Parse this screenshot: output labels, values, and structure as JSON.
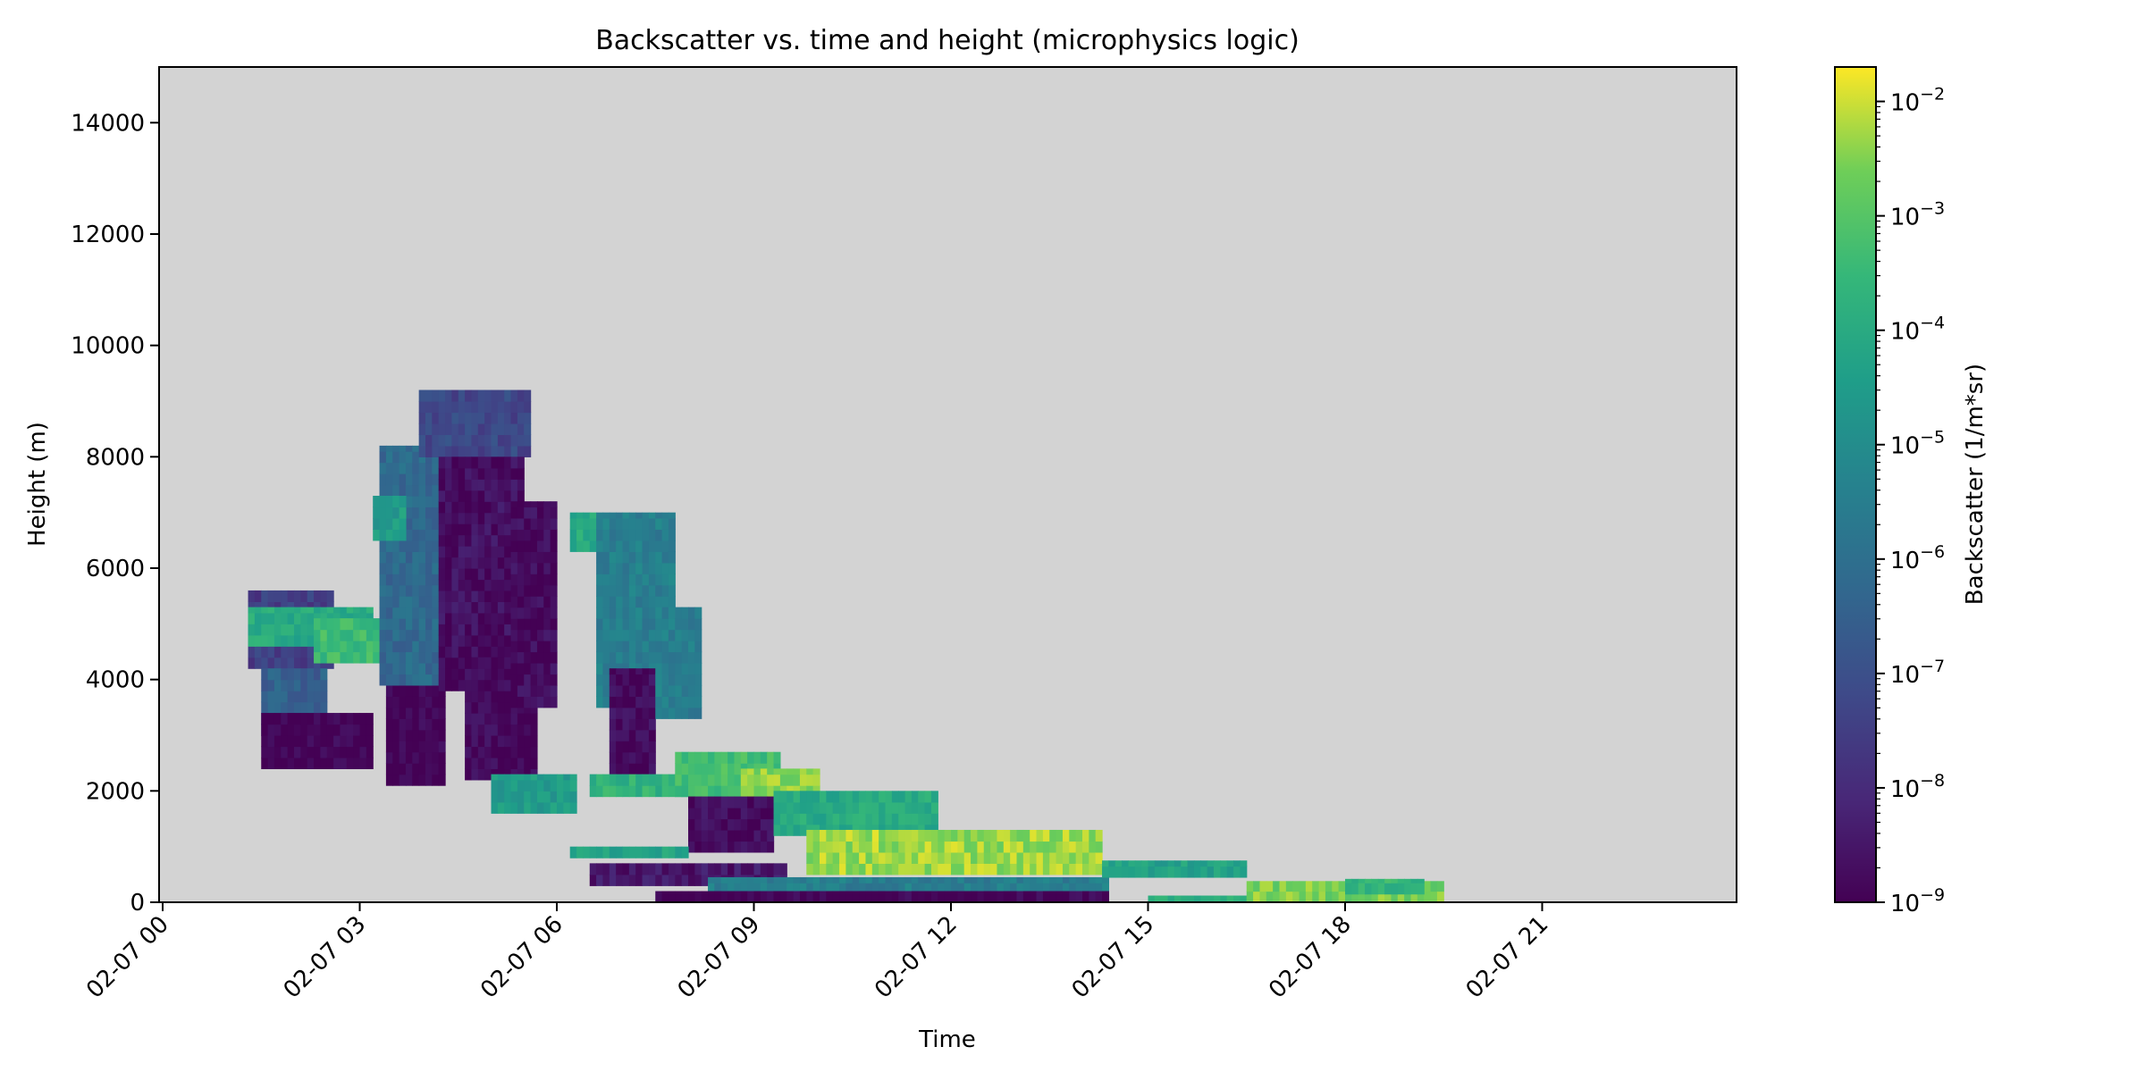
{
  "chart_data": {
    "type": "heatmap",
    "title": "Backscatter vs. time and height (microphysics logic)",
    "xlabel": "Time",
    "ylabel": "Height (m)",
    "x_ticks": [
      "02-07 00",
      "02-07 03",
      "02-07 06",
      "02-07 09",
      "02-07 12",
      "02-07 15",
      "02-07 18",
      "02-07 21"
    ],
    "y_ticks": [
      0,
      2000,
      4000,
      6000,
      8000,
      10000,
      12000,
      14000
    ],
    "xlim_hours": [
      0,
      24
    ],
    "ylim": [
      0,
      15000
    ],
    "grid": false,
    "background_color": "#d3d3d3",
    "colorbar": {
      "label": "Backscatter (1/m*sr)",
      "scale": "log",
      "vmin": 1e-09,
      "vmax": 0.02,
      "tick_exponents": [
        -9,
        -8,
        -7,
        -6,
        -5,
        -4,
        -3,
        -2
      ],
      "colormap": "viridis"
    },
    "regions": [
      {
        "hours": [
          1.3,
          2.6
        ],
        "height_m": [
          4200,
          5600
        ],
        "log10_backscatter": -7.5
      },
      {
        "hours": [
          1.3,
          3.2
        ],
        "height_m": [
          4600,
          5300
        ],
        "log10_backscatter": -4.0
      },
      {
        "hours": [
          2.3,
          3.8
        ],
        "height_m": [
          4300,
          5100
        ],
        "log10_backscatter": -3.4
      },
      {
        "hours": [
          1.5,
          2.5
        ],
        "height_m": [
          3000,
          4200
        ],
        "log10_backscatter": -6.5
      },
      {
        "hours": [
          1.5,
          3.2
        ],
        "height_m": [
          2400,
          3400
        ],
        "log10_backscatter": -9.0
      },
      {
        "hours": [
          3.4,
          4.3
        ],
        "height_m": [
          2100,
          3900
        ],
        "log10_backscatter": -9.0
      },
      {
        "hours": [
          3.3,
          4.6
        ],
        "height_m": [
          3900,
          8200
        ],
        "log10_backscatter": -6.2
      },
      {
        "hours": [
          3.2,
          3.7
        ],
        "height_m": [
          6500,
          7300
        ],
        "log10_backscatter": -4.5
      },
      {
        "hours": [
          3.9,
          5.6
        ],
        "height_m": [
          8000,
          9200
        ],
        "log10_backscatter": -7.2
      },
      {
        "hours": [
          4.2,
          5.5
        ],
        "height_m": [
          3800,
          8000
        ],
        "log10_backscatter": -8.7
      },
      {
        "hours": [
          4.6,
          5.7
        ],
        "height_m": [
          2200,
          4400
        ],
        "log10_backscatter": -8.9
      },
      {
        "hours": [
          5.3,
          6.0
        ],
        "height_m": [
          3500,
          7200
        ],
        "log10_backscatter": -8.8
      },
      {
        "hours": [
          6.2,
          6.6
        ],
        "height_m": [
          6300,
          7000
        ],
        "log10_backscatter": -4.0
      },
      {
        "hours": [
          6.6,
          7.8
        ],
        "height_m": [
          3500,
          7000
        ],
        "log10_backscatter": -5.5
      },
      {
        "hours": [
          6.8,
          7.5
        ],
        "height_m": [
          2300,
          4200
        ],
        "log10_backscatter": -8.8
      },
      {
        "hours": [
          7.5,
          8.2
        ],
        "height_m": [
          3300,
          5300
        ],
        "log10_backscatter": -5.5
      },
      {
        "hours": [
          5.0,
          6.3
        ],
        "height_m": [
          1600,
          2300
        ],
        "log10_backscatter": -4.5
      },
      {
        "hours": [
          6.5,
          8.0
        ],
        "height_m": [
          1900,
          2300
        ],
        "log10_backscatter": -3.7
      },
      {
        "hours": [
          7.8,
          9.4
        ],
        "height_m": [
          1900,
          2700
        ],
        "log10_backscatter": -3.3
      },
      {
        "hours": [
          8.8,
          10.0
        ],
        "height_m": [
          1700,
          2400
        ],
        "log10_backscatter": -2.5
      },
      {
        "hours": [
          8.0,
          9.3
        ],
        "height_m": [
          900,
          1900
        ],
        "log10_backscatter": -8.8
      },
      {
        "hours": [
          9.3,
          11.8
        ],
        "height_m": [
          1200,
          2000
        ],
        "log10_backscatter": -4.0
      },
      {
        "hours": [
          9.8,
          14.3
        ],
        "height_m": [
          500,
          1300
        ],
        "log10_backscatter": -2.3
      },
      {
        "hours": [
          6.2,
          8.0
        ],
        "height_m": [
          800,
          1000
        ],
        "log10_backscatter": -4.2
      },
      {
        "hours": [
          6.5,
          9.5
        ],
        "height_m": [
          300,
          700
        ],
        "log10_backscatter": -8.5
      },
      {
        "hours": [
          8.3,
          14.4
        ],
        "height_m": [
          150,
          450
        ],
        "log10_backscatter": -5.5
      },
      {
        "hours": [
          7.5,
          14.4
        ],
        "height_m": [
          0,
          200
        ],
        "log10_backscatter": -9.0
      },
      {
        "hours": [
          14.3,
          16.5
        ],
        "height_m": [
          450,
          750
        ],
        "log10_backscatter": -4.3
      },
      {
        "hours": [
          15.0,
          17.0
        ],
        "height_m": [
          0,
          120
        ],
        "log10_backscatter": -3.8
      },
      {
        "hours": [
          16.5,
          19.5
        ],
        "height_m": [
          0,
          380
        ],
        "log10_backscatter": -2.6
      },
      {
        "hours": [
          18.0,
          19.2
        ],
        "height_m": [
          150,
          420
        ],
        "log10_backscatter": -3.6
      }
    ]
  }
}
